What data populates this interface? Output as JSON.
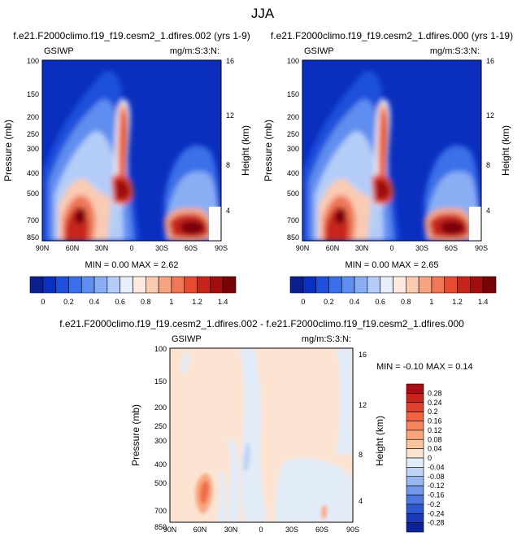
{
  "title": "JJA",
  "chart_data": [
    {
      "type": "heatmap",
      "title": "f.e21.F2000climo.f19_f19.cesm2_1.dfires.002 (yrs 1-9)",
      "left_label": "GSIWP",
      "right_label": "mg/m:S:3:N:",
      "xlabel": "",
      "ylabel": "Pressure (mb)",
      "ylabel_right": "Height (km)",
      "x_ticks": [
        "90N",
        "60N",
        "30N",
        "0",
        "30S",
        "60S",
        "90S"
      ],
      "y_ticks": [
        "100",
        "150",
        "200",
        "250",
        "300",
        "400",
        "500",
        "700",
        "850"
      ],
      "y_ticks_right": [
        "16",
        "12",
        "8",
        "4"
      ],
      "stats": "MIN =  0.00  MAX =  2.62",
      "min": 0.0,
      "max": 2.62,
      "colorbar": {
        "labels": [
          "0",
          "0.2",
          "0.4",
          "0.6",
          "0.8",
          "1",
          "1.2",
          "1.4"
        ],
        "levels": [
          0,
          0.1,
          0.2,
          0.3,
          0.4,
          0.5,
          0.6,
          0.7,
          0.8,
          0.9,
          1.0,
          1.1,
          1.2,
          1.3,
          1.4
        ],
        "colors": [
          "#0b1f8e",
          "#0a30be",
          "#1f4fdb",
          "#3b6fe8",
          "#5f8ef0",
          "#8aaef4",
          "#b4cdf8",
          "#e6eefc",
          "#fdebe1",
          "#f9cbb2",
          "#f5a582",
          "#ef7856",
          "#e44b31",
          "#c8251a",
          "#a10e0f",
          "#7a0308"
        ]
      }
    },
    {
      "type": "heatmap",
      "title": "f.e21.F2000climo.f19_f19.cesm2_1.dfires.000 (yrs 1-19)",
      "left_label": "GSIWP",
      "right_label": "mg/m:S:3:N:",
      "xlabel": "",
      "ylabel": "Pressure (mb)",
      "ylabel_right": "Height (km)",
      "x_ticks": [
        "90N",
        "60N",
        "30N",
        "0",
        "30S",
        "60S",
        "90S"
      ],
      "y_ticks": [
        "100",
        "150",
        "200",
        "250",
        "300",
        "400",
        "500",
        "700",
        "850"
      ],
      "y_ticks_right": [
        "16",
        "12",
        "8",
        "4"
      ],
      "stats": "MIN =  0.00  MAX =  2.65",
      "min": 0.0,
      "max": 2.65,
      "colorbar": {
        "labels": [
          "0",
          "0.2",
          "0.4",
          "0.6",
          "0.8",
          "1",
          "1.2",
          "1.4"
        ],
        "levels": [
          0,
          0.1,
          0.2,
          0.3,
          0.4,
          0.5,
          0.6,
          0.7,
          0.8,
          0.9,
          1.0,
          1.1,
          1.2,
          1.3,
          1.4
        ],
        "colors": [
          "#0b1f8e",
          "#0a30be",
          "#1f4fdb",
          "#3b6fe8",
          "#5f8ef0",
          "#8aaef4",
          "#b4cdf8",
          "#e6eefc",
          "#fdebe1",
          "#f9cbb2",
          "#f5a582",
          "#ef7856",
          "#e44b31",
          "#c8251a",
          "#a10e0f",
          "#7a0308"
        ]
      }
    },
    {
      "type": "heatmap",
      "title": "f.e21.F2000climo.f19_f19.cesm2_1.dfires.002 - f.e21.F2000climo.f19_f19.cesm2_1.dfires.000",
      "left_label": "GSIWP",
      "right_label": "mg/m:S:3:N:",
      "xlabel": "",
      "ylabel": "Pressure (mb)",
      "ylabel_right": "Height (km)",
      "x_ticks": [
        "90N",
        "60N",
        "30N",
        "0",
        "30S",
        "60S",
        "90S"
      ],
      "y_ticks": [
        "100",
        "150",
        "200",
        "250",
        "300",
        "400",
        "500",
        "700",
        "850"
      ],
      "y_ticks_right": [
        "16",
        "12",
        "8",
        "4"
      ],
      "stats": "MIN = -0.10  MAX =  0.14",
      "min": -0.1,
      "max": 0.14,
      "colorbar": {
        "labels": [
          "0.28",
          "0.24",
          "0.2",
          "0.16",
          "0.12",
          "0.08",
          "0.04",
          "0",
          "-0.04",
          "-0.08",
          "-0.12",
          "-0.16",
          "-0.2",
          "-0.24",
          "-0.28"
        ],
        "levels": [
          0.28,
          0.24,
          0.2,
          0.16,
          0.12,
          0.08,
          0.04,
          0,
          -0.04,
          -0.08,
          -0.12,
          -0.16,
          -0.2,
          -0.24,
          -0.28
        ],
        "colors": [
          "#a50f15",
          "#c8241b",
          "#e0422c",
          "#f26341",
          "#f6845b",
          "#f8a47c",
          "#f9c39e",
          "#fce3d1",
          "#e1ecfb",
          "#bcd3f6",
          "#98b8f0",
          "#7398e8",
          "#4e78dd",
          "#2f58cf",
          "#1a3ab8",
          "#0b2299"
        ]
      }
    }
  ]
}
